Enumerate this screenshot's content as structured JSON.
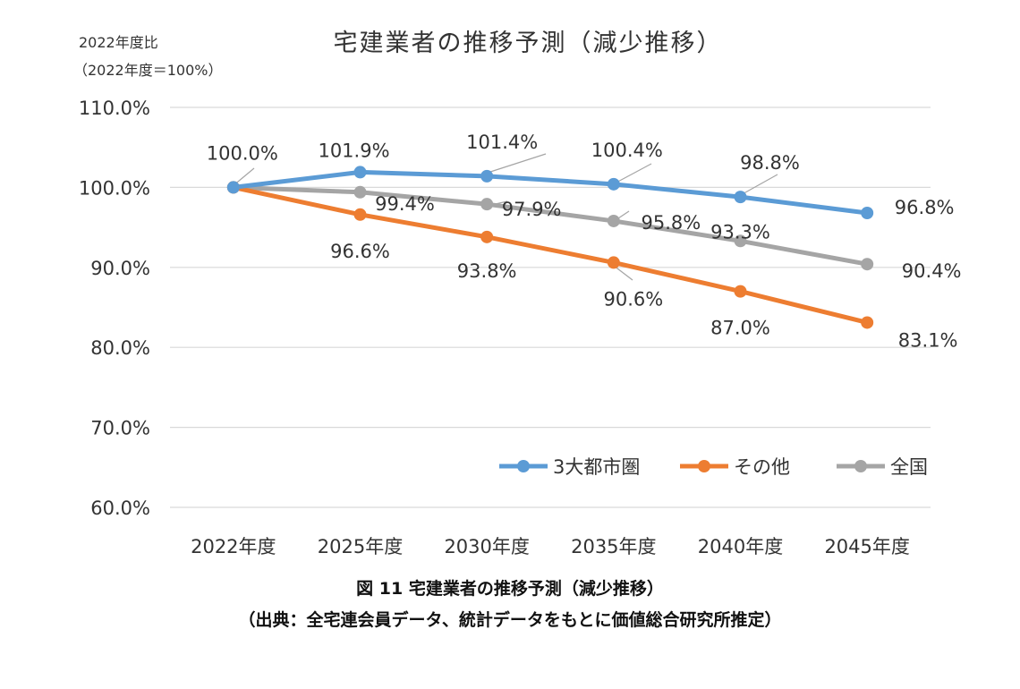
{
  "chart_data": {
    "type": "line",
    "title": "宅建業者の推移予測（減少推移）",
    "ylabel_line1": "2022年度比",
    "ylabel_line2": "（2022年度＝100%）",
    "categories": [
      "2022年度",
      "2025年度",
      "2030年度",
      "2035年度",
      "2040年度",
      "2045年度"
    ],
    "ylim": [
      60,
      110
    ],
    "yticks": [
      "110.0%",
      "100.0%",
      "90.0%",
      "80.0%",
      "70.0%",
      "60.0%"
    ],
    "grid": true,
    "legend_position": "bottom-right",
    "series": [
      {
        "name": "3大都市圏",
        "color": "#5b9bd5",
        "values": [
          100.0,
          101.9,
          101.4,
          100.4,
          98.8,
          96.8
        ],
        "labels": [
          "100.0%",
          "101.9%",
          "101.4%",
          "100.4%",
          "98.8%",
          "96.8%"
        ]
      },
      {
        "name": "その他",
        "color": "#ed7d31",
        "values": [
          100.0,
          96.6,
          93.8,
          90.6,
          87.0,
          83.1
        ],
        "labels": [
          "",
          "96.6%",
          "93.8%",
          "90.6%",
          "87.0%",
          "83.1%"
        ]
      },
      {
        "name": "全国",
        "color": "#a5a5a5",
        "values": [
          100.0,
          99.4,
          97.9,
          95.8,
          93.3,
          90.4
        ],
        "labels": [
          "",
          "99.4%",
          "97.9%",
          "95.8%",
          "93.3%",
          "90.4%"
        ]
      }
    ]
  },
  "caption": {
    "line1": "図 11 宅建業者の推移予測（減少推移）",
    "line2": "（出典：全宅連会員データ、統計データをもとに価値総合研究所推定）"
  }
}
